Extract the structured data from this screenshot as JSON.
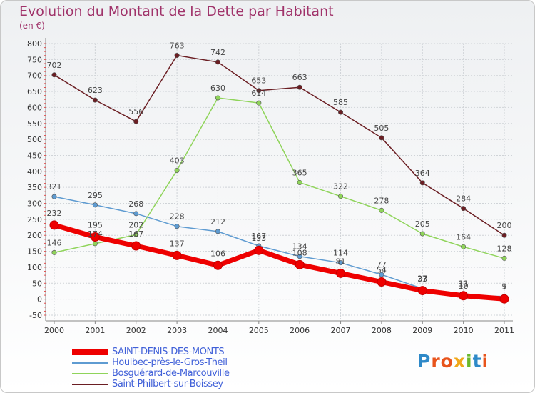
{
  "header": {
    "title": "Evolution du Montant de la Dette par Habitant",
    "unit": "(en €)"
  },
  "logo": {
    "text": "Proxiti",
    "letters": [
      "P",
      "r",
      "o",
      "x",
      "i",
      "t",
      "i"
    ],
    "colors": [
      "#2e89c8",
      "#e8541c",
      "#e8541c",
      "#f0a81a",
      "#6ab82a",
      "#2e89c8",
      "#e8541c"
    ]
  },
  "chart_data": {
    "type": "line",
    "x": [
      "2000",
      "2001",
      "2002",
      "2003",
      "2004",
      "2005",
      "2006",
      "2007",
      "2008",
      "2009",
      "2010",
      "2011"
    ],
    "ylim": [
      -50,
      800
    ],
    "yticks": [
      -50,
      0,
      50,
      100,
      150,
      200,
      250,
      300,
      350,
      400,
      450,
      500,
      550,
      600,
      650,
      700,
      750,
      800
    ],
    "grid": true,
    "legend": "bottom-left",
    "series": [
      {
        "name": "Saint-Philbert-sur-Boissey",
        "color": "#6b1e23",
        "values": [
          702,
          623,
          556,
          763,
          742,
          653,
          663,
          585,
          505,
          364,
          284,
          200
        ]
      },
      {
        "name": "Bosguérard-de-Marcouville",
        "color": "#8fd45a",
        "values": [
          146,
          174,
          202,
          403,
          630,
          614,
          365,
          322,
          278,
          205,
          164,
          128
        ]
      },
      {
        "name": "Houlbec-près-le-Gros-Theil",
        "color": "#5e9bd1",
        "values": [
          321,
          295,
          268,
          228,
          212,
          167,
          134,
          114,
          77,
          33,
          10,
          9
        ]
      },
      {
        "name": "SAINT-DENIS-DES-MONTS",
        "color": "#ee0000",
        "values": [
          232,
          195,
          167,
          137,
          106,
          153,
          108,
          81,
          54,
          27,
          11,
          1
        ]
      }
    ]
  }
}
